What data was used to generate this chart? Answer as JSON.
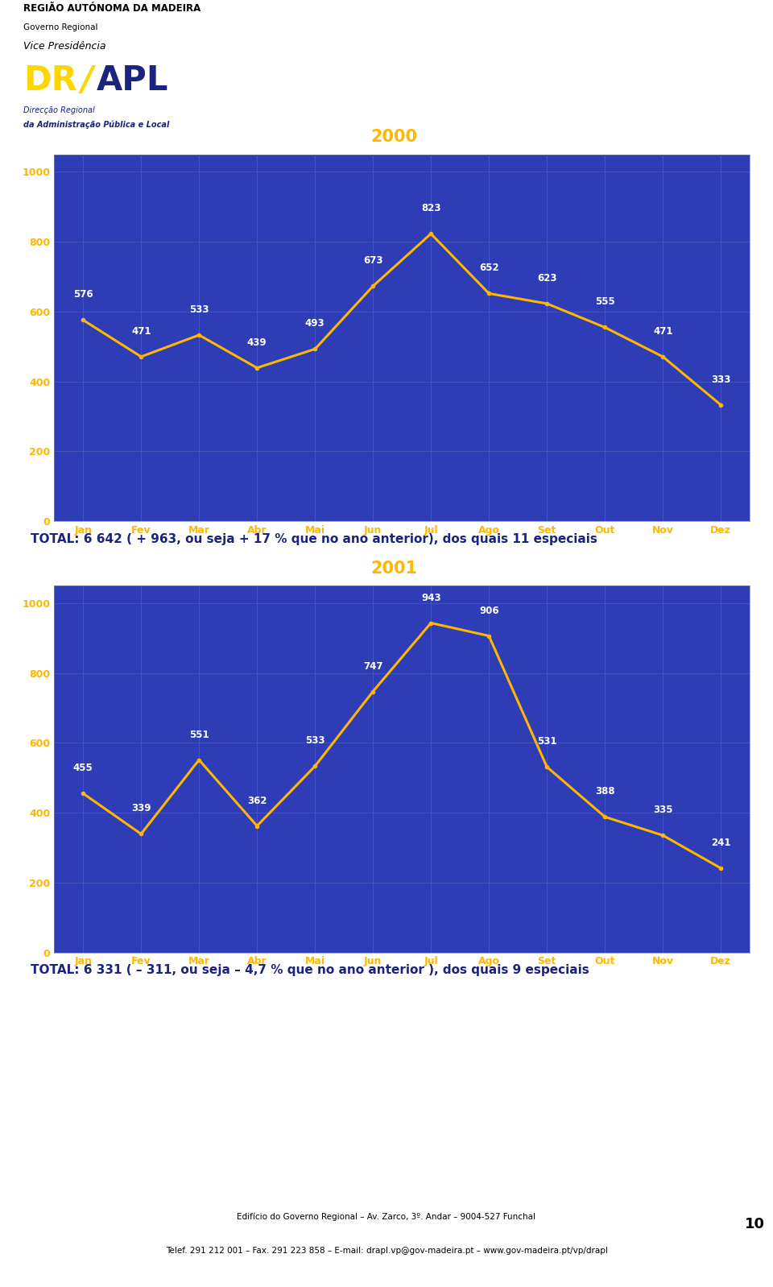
{
  "chart1": {
    "title": "2000",
    "months": [
      "Jan",
      "Fev",
      "Mar",
      "Abr",
      "Mai",
      "Jun",
      "Jul",
      "Ago",
      "Set",
      "Out",
      "Nov",
      "Dez"
    ],
    "values": [
      576,
      471,
      533,
      439,
      493,
      673,
      823,
      652,
      623,
      555,
      471,
      333
    ],
    "yticks": [
      0,
      200,
      400,
      600,
      800,
      1000
    ],
    "ylim": [
      0,
      1050
    ],
    "total_text": "TOTAL: 6 642 ( + 963, ou seja + 17 % que no ano anterior), dos quais 11 especiais"
  },
  "chart2": {
    "title": "2001",
    "months": [
      "Jan",
      "Fev",
      "Mar",
      "Abr",
      "Mai",
      "Jun",
      "Jul",
      "Ago",
      "Set",
      "Out",
      "Nov",
      "Dez"
    ],
    "values": [
      455,
      339,
      551,
      362,
      533,
      747,
      943,
      906,
      531,
      388,
      335,
      241
    ],
    "yticks": [
      0,
      200,
      400,
      600,
      800,
      1000
    ],
    "ylim": [
      0,
      1050
    ],
    "total_text": "TOTAL: 6 331 ( – 311, ou seja – 4,7 % que no ano anterior ), dos quais 9 especiais"
  },
  "bg_outer": "#1e2b8c",
  "bg_inner": "#2e3db5",
  "line_color": "#FFB700",
  "label_color": "#FFFFFF",
  "title_color": "#FFB700",
  "axis_label_color": "#FFB700",
  "total_bold_color": "#1a237e",
  "grid_color": "#4a5bbf",
  "page_bg": "#FFFFFF",
  "footer_text": "Edifício do Governo Regional – Av. Zarco, 3º. Andar – 9004-527 Funchal",
  "footer_text2": "Telef. 291 212 001 – Fax. 291 223 858 – E-mail: drapl.vp@gov-madeira.pt – www.gov-madeira.pt/vp/drapl",
  "page_number": "10",
  "header_line1": "REGIÃO AUTÓNOMA DA MADEIRA",
  "header_line2": "Governo Regional",
  "header_line3": "Vice Presidência",
  "logo_dr_color": "#FFD700",
  "logo_apl_color": "#1a237e",
  "logo_sub1": "Direcção Regional",
  "logo_sub2": "da Administração Pública e Local"
}
